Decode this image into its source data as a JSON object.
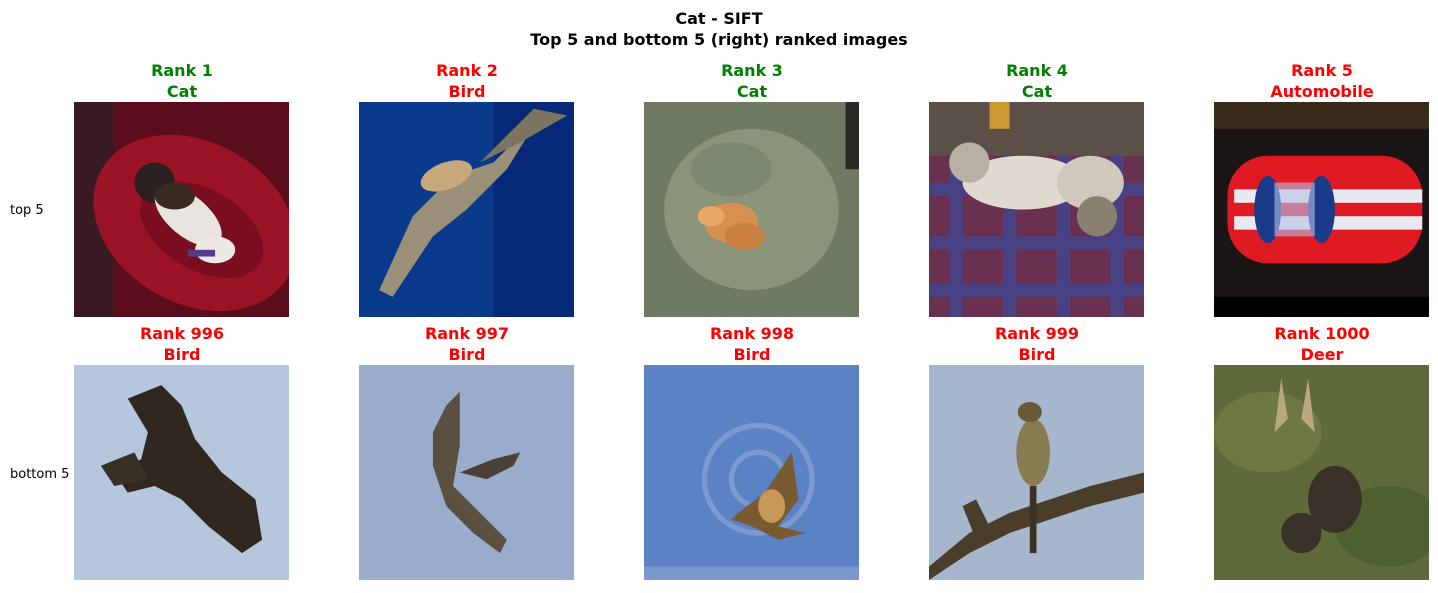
{
  "figure": {
    "title_line1": "Cat - SIFT",
    "title_line2": "Top 5 and bottom 5 (right) ranked images"
  },
  "colors": {
    "correct": "#008000",
    "incorrect": "#ff0000"
  },
  "rows": [
    {
      "label": "top 5",
      "items": [
        {
          "rank": "Rank 1",
          "cls": "Cat",
          "correct": true,
          "thumb": "cat-on-red-blanket"
        },
        {
          "rank": "Rank 2",
          "cls": "Bird",
          "correct": false,
          "thumb": "bird-on-dark-blue"
        },
        {
          "rank": "Rank 3",
          "cls": "Cat",
          "correct": true,
          "thumb": "kitten-on-grey"
        },
        {
          "rank": "Rank 4",
          "cls": "Cat",
          "correct": true,
          "thumb": "cat-on-plaid"
        },
        {
          "rank": "Rank 5",
          "cls": "Automobile",
          "correct": false,
          "thumb": "red-car-top-view"
        }
      ]
    },
    {
      "label": "bottom 5",
      "items": [
        {
          "rank": "Rank 996",
          "cls": "Bird",
          "correct": false,
          "thumb": "dark-bird-flying"
        },
        {
          "rank": "Rank 997",
          "cls": "Bird",
          "correct": false,
          "thumb": "bird-gliding"
        },
        {
          "rank": "Rank 998",
          "cls": "Bird",
          "correct": false,
          "thumb": "bird-on-blue-sky"
        },
        {
          "rank": "Rank 999",
          "cls": "Bird",
          "correct": false,
          "thumb": "bird-on-branch"
        },
        {
          "rank": "Rank 1000",
          "cls": "Deer",
          "correct": false,
          "thumb": "deer-in-grass"
        }
      ]
    }
  ]
}
